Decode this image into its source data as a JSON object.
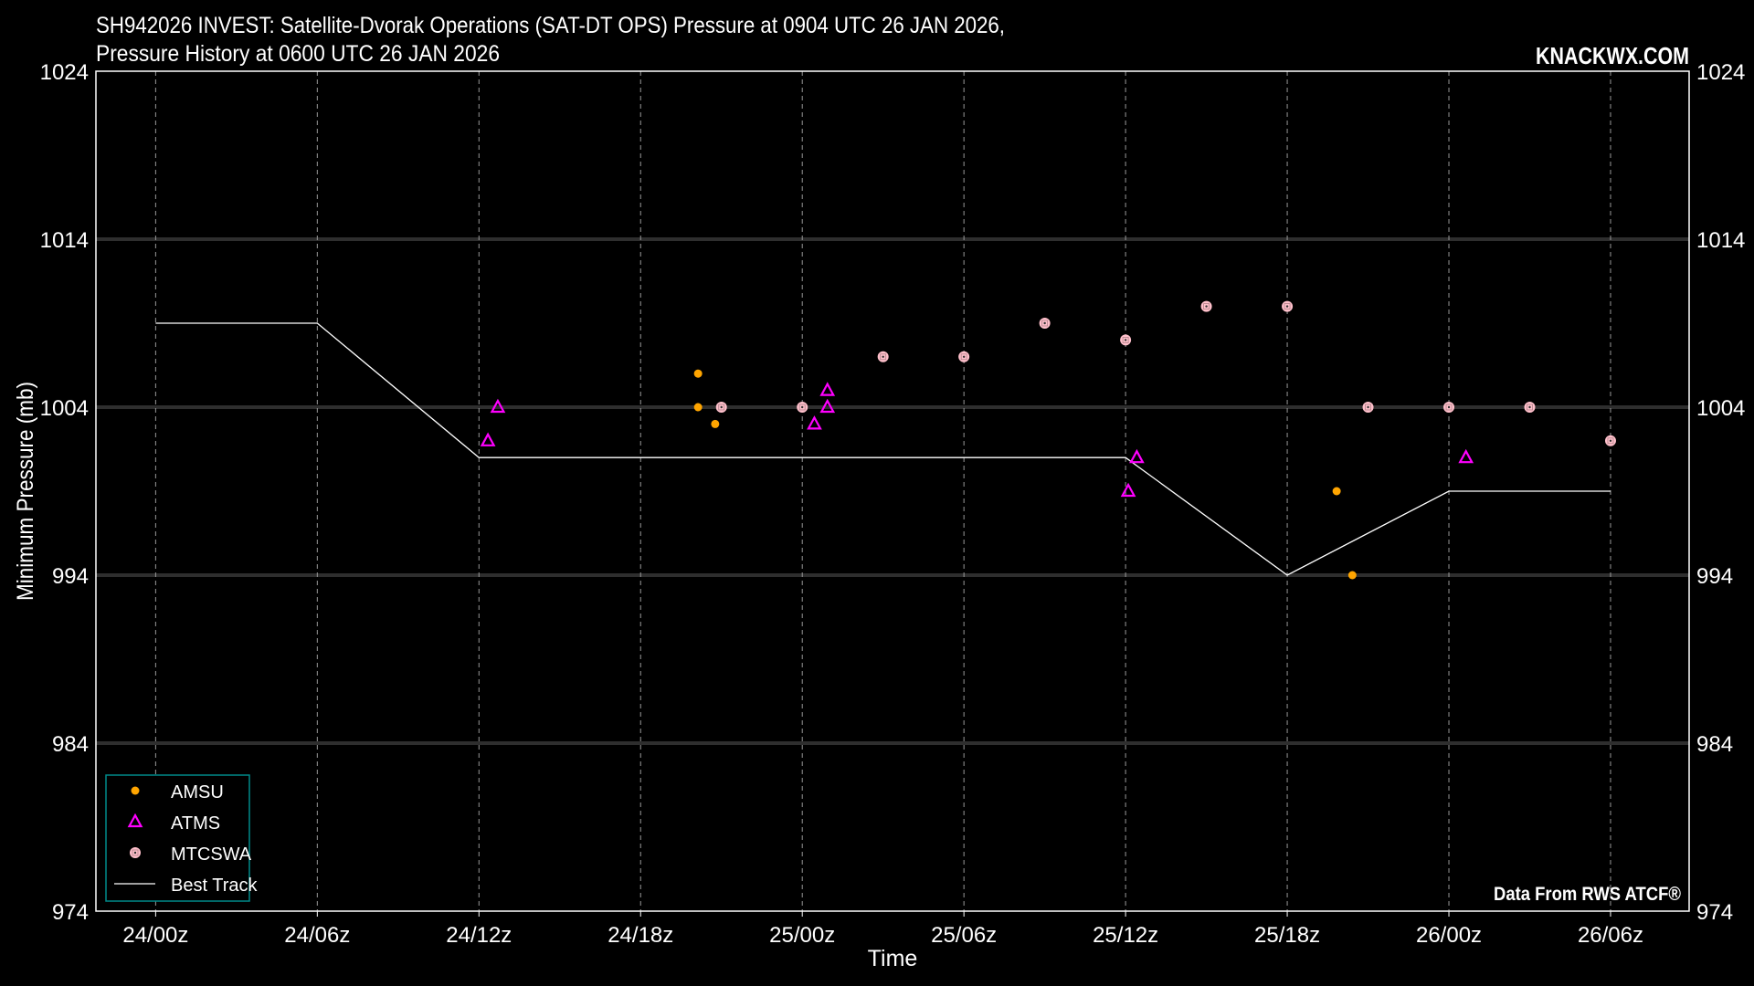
{
  "chart_data": {
    "type": "scatter",
    "title_line1": "SH942026 INVEST: Satellite-Dvorak Operations (SAT-DT OPS) Pressure at 0904 UTC 26 JAN 2026,",
    "title_line2": "Pressure History at 0600 UTC 26 JAN 2026",
    "watermark": "KNACKWX.COM",
    "credit": "Data From RWS ATCF®",
    "xlabel": "Time",
    "ylabel": "Minimum Pressure (mb)",
    "ylim": [
      974,
      1024
    ],
    "yticks": [
      "974",
      "984",
      "994",
      "1004",
      "1014",
      "1024"
    ],
    "xlim": [
      "2026-01-23T21:47Z",
      "2026-01-26T08:55Z"
    ],
    "xticks": [
      {
        "t": "2026-01-24T00:00Z",
        "label": "24/00z"
      },
      {
        "t": "2026-01-24T06:00Z",
        "label": "24/06z"
      },
      {
        "t": "2026-01-24T12:00Z",
        "label": "24/12z"
      },
      {
        "t": "2026-01-24T18:00Z",
        "label": "24/18z"
      },
      {
        "t": "2026-01-25T00:00Z",
        "label": "25/00z"
      },
      {
        "t": "2026-01-25T06:00Z",
        "label": "25/06z"
      },
      {
        "t": "2026-01-25T12:00Z",
        "label": "25/12z"
      },
      {
        "t": "2026-01-25T18:00Z",
        "label": "25/18z"
      },
      {
        "t": "2026-01-26T00:00Z",
        "label": "26/00z"
      },
      {
        "t": "2026-01-26T06:00Z",
        "label": "26/06z"
      }
    ],
    "grid": true,
    "legend_position": "bottom-left",
    "series": [
      {
        "name": "AMSU",
        "marker": "dot",
        "color": "#ffa500",
        "points": [
          {
            "t": "2026-01-24T20:08Z",
            "p": 1006
          },
          {
            "t": "2026-01-24T20:08Z",
            "p": 1004
          },
          {
            "t": "2026-01-24T20:46Z",
            "p": 1003
          },
          {
            "t": "2026-01-25T19:50Z",
            "p": 999
          },
          {
            "t": "2026-01-25T20:25Z",
            "p": 994
          }
        ]
      },
      {
        "name": "ATMS",
        "marker": "triangle",
        "color": "#ff00ff",
        "points": [
          {
            "t": "2026-01-24T12:20Z",
            "p": 1002
          },
          {
            "t": "2026-01-24T12:42Z",
            "p": 1004
          },
          {
            "t": "2026-01-25T00:27Z",
            "p": 1003
          },
          {
            "t": "2026-01-25T00:56Z",
            "p": 1005
          },
          {
            "t": "2026-01-25T00:56Z",
            "p": 1004
          },
          {
            "t": "2026-01-25T12:06Z",
            "p": 999
          },
          {
            "t": "2026-01-25T12:25Z",
            "p": 1001
          },
          {
            "t": "2026-01-26T00:38Z",
            "p": 1001
          }
        ]
      },
      {
        "name": "MTCSWA",
        "marker": "target",
        "color": "#ffc0cb",
        "points": [
          {
            "t": "2026-01-24T21:00Z",
            "p": 1004
          },
          {
            "t": "2026-01-25T00:00Z",
            "p": 1004
          },
          {
            "t": "2026-01-25T03:00Z",
            "p": 1007
          },
          {
            "t": "2026-01-25T06:00Z",
            "p": 1007
          },
          {
            "t": "2026-01-25T09:00Z",
            "p": 1009
          },
          {
            "t": "2026-01-25T12:00Z",
            "p": 1008
          },
          {
            "t": "2026-01-25T15:00Z",
            "p": 1010
          },
          {
            "t": "2026-01-25T18:00Z",
            "p": 1010
          },
          {
            "t": "2026-01-25T21:00Z",
            "p": 1004
          },
          {
            "t": "2026-01-26T00:00Z",
            "p": 1004
          },
          {
            "t": "2026-01-26T03:00Z",
            "p": 1004
          },
          {
            "t": "2026-01-26T06:00Z",
            "p": 1002
          }
        ]
      },
      {
        "name": "Best Track",
        "marker": "line",
        "color": "#ffffff",
        "points": [
          {
            "t": "2026-01-24T00:00Z",
            "p": 1009
          },
          {
            "t": "2026-01-24T06:00Z",
            "p": 1009
          },
          {
            "t": "2026-01-24T12:00Z",
            "p": 1001
          },
          {
            "t": "2026-01-25T12:00Z",
            "p": 1001
          },
          {
            "t": "2026-01-25T18:00Z",
            "p": 994
          },
          {
            "t": "2026-01-26T00:00Z",
            "p": 999
          },
          {
            "t": "2026-01-26T06:00Z",
            "p": 999
          }
        ]
      }
    ],
    "legend_border_color": "#008b8b"
  }
}
